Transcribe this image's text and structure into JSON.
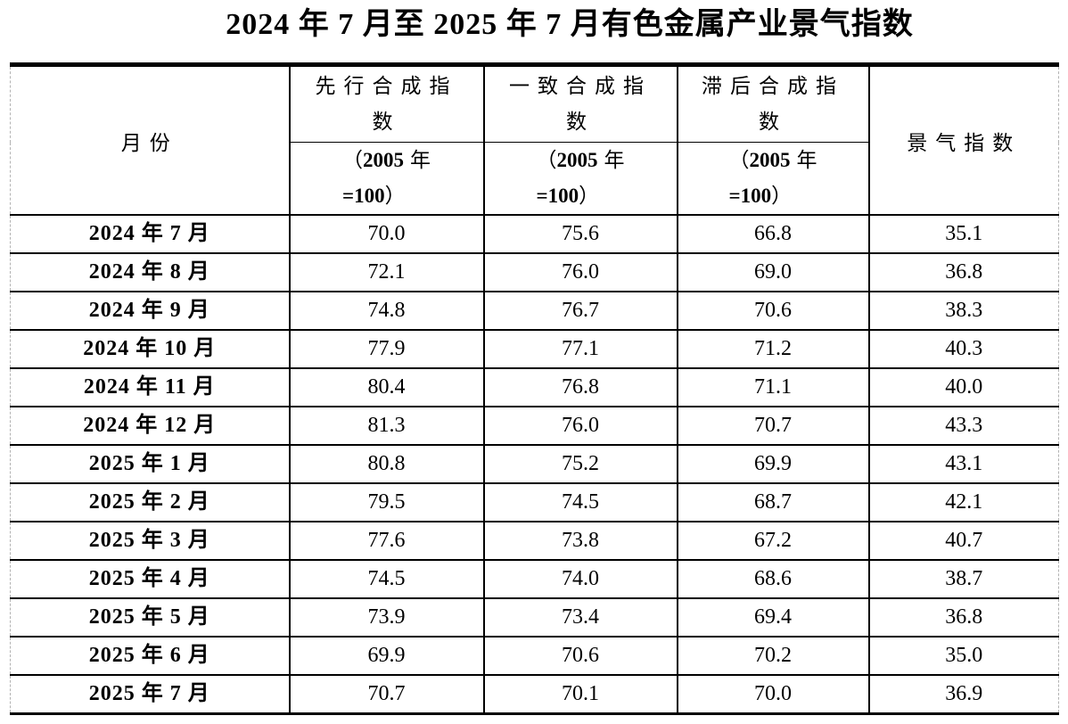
{
  "title": "2024 年 7 月至 2025 年 7 月有色金属产业景气指数",
  "table": {
    "columns": {
      "month": "月份",
      "leading": {
        "line1": "先行合成指",
        "line2": "数"
      },
      "coincident": {
        "line1": "一致合成指",
        "line2": "数"
      },
      "lagging": {
        "line1": "滞后合成指",
        "line2": "数"
      },
      "prosperity": "景气指数"
    },
    "base_note": {
      "open": "（",
      "year": "2005",
      "year_suffix": "年",
      "eq": "=100",
      "close": "）"
    },
    "rows": [
      {
        "month": "2024 年 7 月",
        "leading": "70.0",
        "coincident": "75.6",
        "lagging": "66.8",
        "prosperity": "35.1"
      },
      {
        "month": "2024 年 8 月",
        "leading": "72.1",
        "coincident": "76.0",
        "lagging": "69.0",
        "prosperity": "36.8"
      },
      {
        "month": "2024 年 9 月",
        "leading": "74.8",
        "coincident": "76.7",
        "lagging": "70.6",
        "prosperity": "38.3"
      },
      {
        "month": "2024 年 10 月",
        "leading": "77.9",
        "coincident": "77.1",
        "lagging": "71.2",
        "prosperity": "40.3"
      },
      {
        "month": "2024 年 11 月",
        "leading": "80.4",
        "coincident": "76.8",
        "lagging": "71.1",
        "prosperity": "40.0"
      },
      {
        "month": "2024 年 12 月",
        "leading": "81.3",
        "coincident": "76.0",
        "lagging": "70.7",
        "prosperity": "43.3"
      },
      {
        "month": "2025 年 1 月",
        "leading": "80.8",
        "coincident": "75.2",
        "lagging": "69.9",
        "prosperity": "43.1"
      },
      {
        "month": "2025 年 2 月",
        "leading": "79.5",
        "coincident": "74.5",
        "lagging": "68.7",
        "prosperity": "42.1"
      },
      {
        "month": "2025 年 3 月",
        "leading": "77.6",
        "coincident": "73.8",
        "lagging": "67.2",
        "prosperity": "40.7"
      },
      {
        "month": "2025 年 4 月",
        "leading": "74.5",
        "coincident": "74.0",
        "lagging": "68.6",
        "prosperity": "38.7"
      },
      {
        "month": "2025 年 5 月",
        "leading": "73.9",
        "coincident": "73.4",
        "lagging": "69.4",
        "prosperity": "36.8"
      },
      {
        "month": "2025 年 6 月",
        "leading": "69.9",
        "coincident": "70.6",
        "lagging": "70.2",
        "prosperity": "35.0"
      },
      {
        "month": "2025 年 7 月",
        "leading": "70.7",
        "coincident": "70.1",
        "lagging": "70.0",
        "prosperity": "36.9"
      }
    ]
  }
}
